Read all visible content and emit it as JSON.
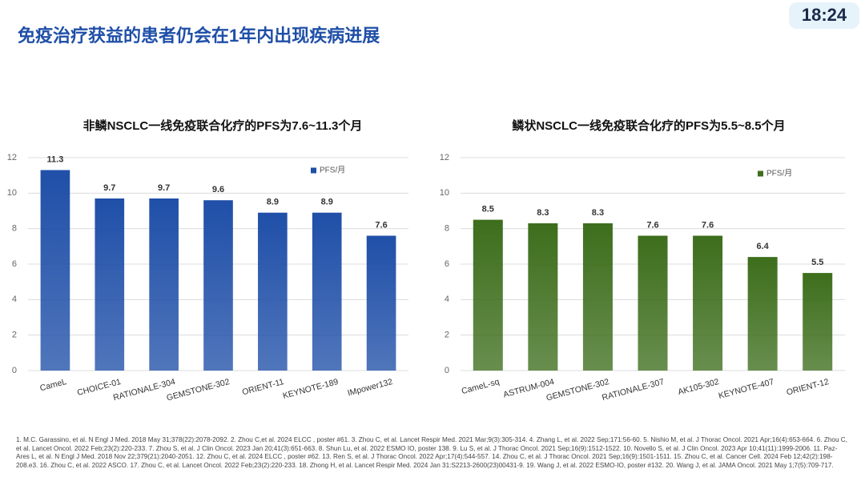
{
  "slide_title": "免疫治疗获益的患者仍会在1年内出现疾病进展",
  "clock": "18:24",
  "chart_data": [
    {
      "type": "bar",
      "title": "非鳞NSCLC一线免疫联合化疗的PFS为7.6~11.3个月",
      "categories": [
        "CameL",
        "CHOICE-01",
        "RATIONALE-304",
        "GEMSTONE-302",
        "ORIENT-11",
        "KEYNOTE-189",
        "IMpower132"
      ],
      "series": [
        {
          "name": "PFS/月",
          "color": "#1f4fa8",
          "values": [
            11.3,
            9.7,
            9.7,
            9.6,
            8.9,
            8.9,
            7.6
          ]
        }
      ],
      "ylim": [
        0,
        12
      ],
      "yticks": [
        0,
        2,
        4,
        6,
        8,
        10,
        12
      ],
      "grid": true,
      "legend": "top-right"
    },
    {
      "type": "bar",
      "title": "鳞状NSCLC一线免疫联合化疗的PFS为5.5~8.5个月",
      "categories": [
        "CameL-sq",
        "ASTRUM-004",
        "GEMSTONE-302",
        "RATIONALE-307",
        "AK105-302",
        "KEYNOTE-407",
        "ORIENT-12"
      ],
      "series": [
        {
          "name": "PFS/月",
          "color": "#3d6e1c",
          "values": [
            8.5,
            8.3,
            8.3,
            7.6,
            7.6,
            6.4,
            5.5
          ]
        }
      ],
      "ylim": [
        0,
        12
      ],
      "yticks": [
        0,
        2,
        4,
        6,
        8,
        10,
        12
      ],
      "grid": true,
      "legend": "top-right"
    }
  ],
  "references": "1. M.C. Garassino, et al. N Engl J Med. 2018 May 31;378(22):2078-2092. 2. Zhou C,et al. 2024 ELCC , poster #61. 3. Zhou C, et al. Lancet Respir Med. 2021 Mar;9(3):305-314. 4. Zhang L, et al. 2022 Sep;171:56-60. 5. Nishio M, et al. J Thorac Oncol. 2021 Apr;16(4):653-664. 6. Zhou C, et al. Lancet Oncol. 2022 Feb;23(2):220-233. 7. Zhou S, et al. J Clin Oncol. 2023 Jan 20;41(3):651-663. 8. Shun Lu, et al. 2022 ESMO IO, poster 138. 9. Lu S, et al. J Thorac Oncol. 2021 Sep;16(9):1512-1522. 10. Novello S, et al. J Clin Oncol. 2023 Apr 10;41(11):1999-2006. 11. Paz-Ares L, et al. N Engl J Med. 2018 Nov 22;379(21):2040-2051. 12. Zhou C, et al. 2024 ELCC , poster #62. 13. Ren S, et al. J Thorac Oncol. 2022 Apr;17(4):544-557. 14. Zhou C, et al. J Thorac Oncol. 2021 Sep;16(9):1501-1511. 15. Zhou C, et al. Cancer Cell. 2024 Feb 12;42(2):198-208.e3. 16. Zhou C, et al. 2022 ASCO. 17. Zhou C, et al. Lancet Oncol. 2022 Feb;23(2):220-233. 18. Zhong H, et al. Lancet Respir Med. 2024 Jan 31:S2213-2600(23)00431-9. 19. Wang J, et al. 2022 ESMO-IO, poster #132. 20. Wang J, et al. JAMA Oncol. 2021 May 1;7(5):709-717."
}
